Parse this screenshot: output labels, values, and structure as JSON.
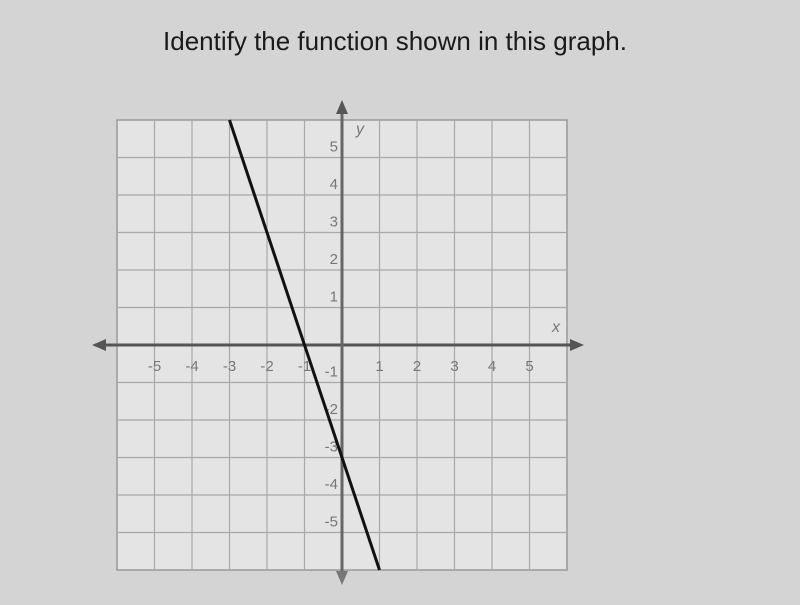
{
  "chart_data": {
    "type": "line",
    "title": "Identify the function shown in this graph.",
    "x_label": "x",
    "y_label": "y",
    "xlim": [
      -6,
      6
    ],
    "ylim": [
      -6,
      6
    ],
    "xticks": [
      -5,
      -4,
      -3,
      -2,
      -1,
      1,
      2,
      3,
      4,
      5
    ],
    "yticks": [
      -5,
      -4,
      -3,
      -2,
      -1,
      1,
      2,
      3,
      4,
      5
    ],
    "grid": true,
    "series": [
      {
        "x": [
          -3,
          1
        ],
        "values": [
          6,
          -6
        ],
        "color": "#111111"
      }
    ]
  }
}
